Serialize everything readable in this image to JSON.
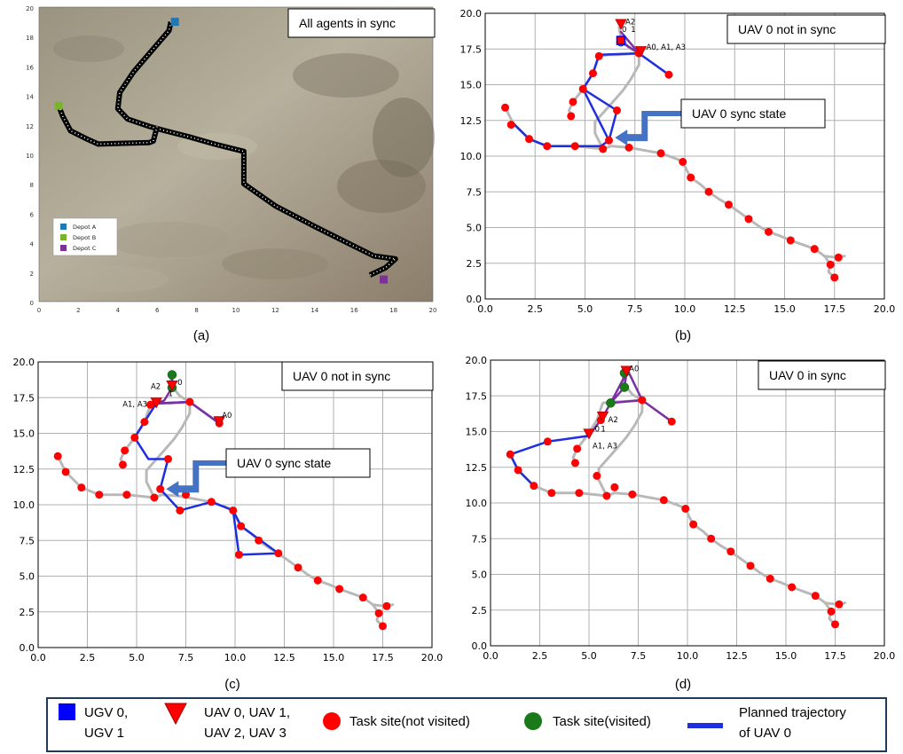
{
  "chart_data": [
    {
      "panel": "a",
      "type": "scatter",
      "caption": "(a)",
      "status_box": "All agents in sync",
      "background": "satellite terrain image",
      "xlim": [
        0,
        20
      ],
      "ylim": [
        0,
        20
      ],
      "xticks": [
        0,
        2,
        4,
        6,
        8,
        10,
        12,
        14,
        16,
        18,
        20
      ],
      "yticks": [
        0,
        2,
        4,
        6,
        8,
        10,
        12,
        14,
        16,
        18,
        20
      ],
      "road": [
        [
          6.7,
          19.0
        ],
        [
          6.6,
          18.4
        ],
        [
          5.7,
          17.0
        ],
        [
          4.8,
          15.6
        ],
        [
          4.1,
          14.2
        ],
        [
          4.0,
          13.1
        ],
        [
          4.5,
          12.4
        ],
        [
          5.6,
          11.9
        ],
        [
          6.4,
          11.6
        ],
        [
          7.6,
          11.2
        ],
        [
          8.9,
          10.7
        ],
        [
          10.4,
          10.2
        ],
        [
          10.4,
          8.0
        ],
        [
          12.0,
          6.5
        ],
        [
          14.0,
          5.1
        ],
        [
          15.8,
          3.9
        ],
        [
          17.0,
          3.1
        ],
        [
          18.1,
          2.9
        ],
        [
          17.6,
          2.3
        ],
        [
          16.8,
          1.8
        ]
      ],
      "road_branch": [
        [
          6.0,
          11.9
        ],
        [
          5.8,
          10.9
        ],
        [
          5.6,
          10.8
        ],
        [
          3.0,
          10.7
        ],
        [
          2.5,
          11.0
        ],
        [
          1.6,
          11.6
        ],
        [
          1.2,
          12.6
        ],
        [
          1.0,
          13.3
        ]
      ],
      "depots": [
        {
          "name": "Depot A",
          "x": 6.9,
          "y": 19.0,
          "color": "#1f77b4"
        },
        {
          "name": "Depot B",
          "x": 1.0,
          "y": 13.3,
          "color": "#7ab32e"
        },
        {
          "name": "Depot C",
          "x": 17.5,
          "y": 1.5,
          "color": "#7b3294"
        }
      ]
    },
    {
      "panel": "b",
      "type": "scatter",
      "caption": "(b)",
      "status_box": "UAV 0 not in sync",
      "callout": "UAV 0 sync state",
      "xlim": [
        0,
        20
      ],
      "ylim": [
        0,
        20
      ],
      "xticks": [
        0.0,
        2.5,
        5.0,
        7.5,
        10.0,
        12.5,
        15.0,
        17.5,
        20.0
      ],
      "yticks": [
        0.0,
        2.5,
        5.0,
        7.5,
        10.0,
        12.5,
        15.0,
        17.5,
        20.0
      ],
      "trajectory": [
        [
          9.2,
          15.7
        ],
        [
          7.7,
          17.2
        ],
        [
          5.7,
          17.1
        ],
        [
          5.4,
          15.8
        ],
        [
          4.9,
          14.7
        ],
        [
          4.4,
          13.8
        ],
        [
          4.3,
          12.8
        ],
        [
          3.2,
          12.1
        ],
        [
          2.1,
          11.2
        ],
        [
          1.2,
          10.9
        ],
        [
          1.0,
          10.7
        ],
        [
          1.5,
          11.8
        ],
        [
          1.6,
          12.7
        ],
        [
          1.1,
          13.3
        ],
        [
          3.1,
          10.7
        ],
        [
          4.5,
          10.7
        ],
        [
          5.8,
          10.5
        ],
        [
          6.4,
          11.2
        ],
        [
          6.6,
          13.2
        ],
        [
          5.0,
          14.7
        ],
        [
          6.0,
          11.0
        ],
        [
          6.1,
          12.0
        ]
      ],
      "sites_unvisited": [
        [
          1.0,
          13.4
        ],
        [
          1.3,
          12.2
        ],
        [
          2.2,
          11.2
        ],
        [
          3.1,
          10.7
        ],
        [
          4.5,
          10.7
        ],
        [
          5.9,
          10.5
        ],
        [
          4.3,
          12.8
        ],
        [
          4.4,
          13.8
        ],
        [
          4.9,
          14.7
        ],
        [
          5.4,
          15.8
        ],
        [
          5.7,
          17.0
        ],
        [
          6.2,
          11.1
        ],
        [
          6.6,
          13.2
        ],
        [
          7.2,
          10.6
        ],
        [
          7.7,
          17.2
        ],
        [
          8.8,
          10.2
        ],
        [
          9.2,
          15.7
        ],
        [
          9.9,
          9.6
        ],
        [
          10.3,
          8.5
        ],
        [
          11.2,
          7.5
        ],
        [
          12.2,
          6.6
        ],
        [
          13.2,
          5.6
        ],
        [
          14.2,
          4.7
        ],
        [
          15.3,
          4.1
        ],
        [
          16.5,
          3.5
        ],
        [
          17.3,
          2.4
        ],
        [
          17.5,
          1.5
        ],
        [
          17.7,
          2.9
        ]
      ],
      "sites_visited": [
        [
          6.8,
          18.0
        ]
      ],
      "uavs": [
        {
          "label": "A2",
          "x": 6.8,
          "y": 19.1
        },
        {
          "label": "A0, A1, A3",
          "x": 7.8,
          "y": 17.2
        }
      ],
      "ugvs": [
        {
          "x": 6.8,
          "y": 18.1
        }
      ],
      "labels": [
        "0",
        "1"
      ]
    },
    {
      "panel": "c",
      "type": "scatter",
      "caption": "(c)",
      "status_box": "UAV 0 not in sync",
      "callout": "UAV 0 sync state",
      "xlim": [
        0,
        20
      ],
      "ylim": [
        0,
        20
      ],
      "xticks": [
        0.0,
        2.5,
        5.0,
        7.5,
        10.0,
        12.5,
        15.0,
        17.5,
        20.0
      ],
      "yticks": [
        0.0,
        2.5,
        5.0,
        7.5,
        10.0,
        12.5,
        15.0,
        17.5,
        20.0
      ],
      "sites_unvisited": [
        [
          1.0,
          13.4
        ],
        [
          1.4,
          12.3
        ],
        [
          2.2,
          11.2
        ],
        [
          3.1,
          10.7
        ],
        [
          4.5,
          10.7
        ],
        [
          5.9,
          10.5
        ],
        [
          4.3,
          12.8
        ],
        [
          4.4,
          13.8
        ],
        [
          4.9,
          14.7
        ],
        [
          5.4,
          15.8
        ],
        [
          5.7,
          17.0
        ],
        [
          6.2,
          11.1
        ],
        [
          6.6,
          13.2
        ],
        [
          7.2,
          9.6
        ],
        [
          7.7,
          17.2
        ],
        [
          8.8,
          10.2
        ],
        [
          9.2,
          15.7
        ],
        [
          9.9,
          9.6
        ],
        [
          10.3,
          8.5
        ],
        [
          10.2,
          6.5
        ],
        [
          11.2,
          7.5
        ],
        [
          12.2,
          6.6
        ],
        [
          13.2,
          5.6
        ],
        [
          14.2,
          4.7
        ],
        [
          15.3,
          4.1
        ],
        [
          16.5,
          3.5
        ],
        [
          17.3,
          2.4
        ],
        [
          17.5,
          1.5
        ],
        [
          17.7,
          2.9
        ],
        [
          7.5,
          10.7
        ]
      ],
      "sites_visited": [
        [
          6.8,
          19.1
        ],
        [
          6.8,
          18.2
        ]
      ],
      "uavs": [
        {
          "label": "A2",
          "x": 6.8,
          "y": 18.2
        },
        {
          "label": "A1, A3",
          "x": 6.0,
          "y": 17.1
        },
        {
          "label": "A0",
          "x": 9.2,
          "y": 15.7
        }
      ],
      "labels": [
        "0",
        "1"
      ]
    },
    {
      "panel": "d",
      "type": "scatter",
      "caption": "(d)",
      "status_box": "UAV 0  in sync",
      "xlim": [
        0,
        20
      ],
      "ylim": [
        0,
        20
      ],
      "xticks": [
        0.0,
        2.5,
        5.0,
        7.5,
        10.0,
        12.5,
        15.0,
        17.5,
        20.0
      ],
      "yticks": [
        0.0,
        2.5,
        5.0,
        7.5,
        10.0,
        12.5,
        15.0,
        17.5,
        20.0
      ],
      "sites_unvisited": [
        [
          1.0,
          13.4
        ],
        [
          1.4,
          12.3
        ],
        [
          2.2,
          11.2
        ],
        [
          3.1,
          10.7
        ],
        [
          4.5,
          10.7
        ],
        [
          5.9,
          10.5
        ],
        [
          4.3,
          12.8
        ],
        [
          4.4,
          13.8
        ],
        [
          2.9,
          14.3
        ],
        [
          5.4,
          11.9
        ],
        [
          6.3,
          11.1
        ],
        [
          7.2,
          10.6
        ],
        [
          8.8,
          10.2
        ],
        [
          9.9,
          9.6
        ],
        [
          10.3,
          8.5
        ],
        [
          11.2,
          7.5
        ],
        [
          12.2,
          6.6
        ],
        [
          13.2,
          5.6
        ],
        [
          14.2,
          4.7
        ],
        [
          15.3,
          4.1
        ],
        [
          16.5,
          3.5
        ],
        [
          17.3,
          2.4
        ],
        [
          17.5,
          1.5
        ],
        [
          17.7,
          2.9
        ],
        [
          7.7,
          17.2
        ],
        [
          9.2,
          15.7
        ],
        [
          5.6,
          15.8
        ]
      ],
      "sites_visited": [
        [
          6.1,
          17.0
        ],
        [
          6.8,
          18.1
        ],
        [
          6.8,
          19.1
        ]
      ],
      "uavs": [
        {
          "label": "A0",
          "x": 6.9,
          "y": 19.1
        },
        {
          "label": "A2",
          "x": 5.7,
          "y": 15.9
        },
        {
          "label": "A1, A3",
          "x": 5.0,
          "y": 14.7
        }
      ],
      "labels": [
        "0",
        "1"
      ]
    }
  ],
  "legend": {
    "ugv": "UGV 0,\nUGV 1",
    "uav": "UAV 0, UAV 1,\nUAV 2, UAV 3",
    "site_unvisited": "Task site(not visited)",
    "site_visited": "Task site(visited)",
    "trajectory": "Planned trajectory\nof UAV 0",
    "colors": {
      "ugv": "#0000ff",
      "uav": "#ff0000",
      "unvisited": "#ff0000",
      "visited": "#1a7a1a",
      "trajectory": "#1f2fe0",
      "road": "#bbbbbb",
      "purple": "#7b2fa5"
    }
  }
}
